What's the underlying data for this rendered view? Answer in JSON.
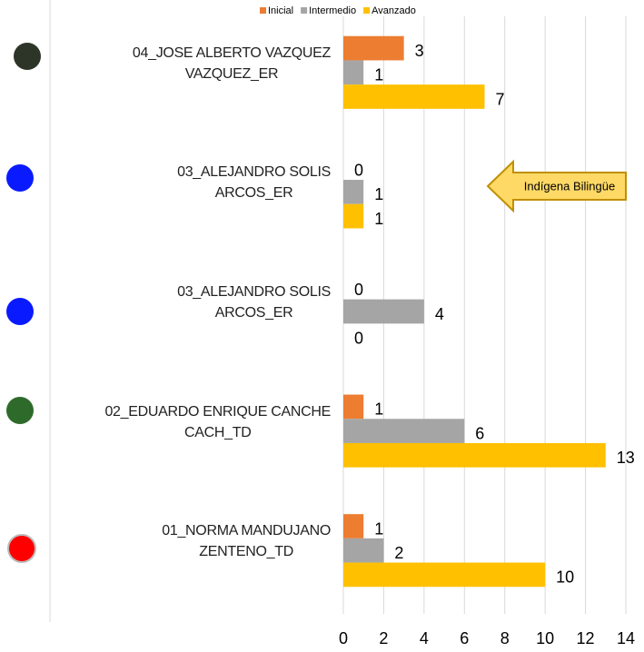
{
  "chart_data": {
    "type": "hbar",
    "categories": [
      "04_JOSE ALBERTO VAZQUEZ\nVAZQUEZ_ER",
      "03_ALEJANDRO SOLIS\nARCOS_ER",
      "03_ALEJANDRO SOLIS\nARCOS_ER",
      "02_EDUARDO ENRIQUE CANCHE\nCACH_TD",
      "01_NORMA MANDUJANO\nZENTENO_TD"
    ],
    "series": [
      {
        "name": "Inicial",
        "color": "#ED7D31",
        "values": [
          3,
          0,
          0,
          1,
          1
        ]
      },
      {
        "name": "Intermedio",
        "color": "#A5A5A5",
        "values": [
          1,
          1,
          4,
          6,
          2
        ]
      },
      {
        "name": "Avanzado",
        "color": "#FFC000",
        "values": [
          7,
          1,
          0,
          13,
          10
        ]
      }
    ],
    "xlim": [
      0,
      14
    ],
    "xticks": [
      0,
      2,
      4,
      6,
      8,
      10,
      12,
      14
    ],
    "grid": true,
    "legend": "top",
    "annotation": "Indígena Bilingüe"
  }
}
